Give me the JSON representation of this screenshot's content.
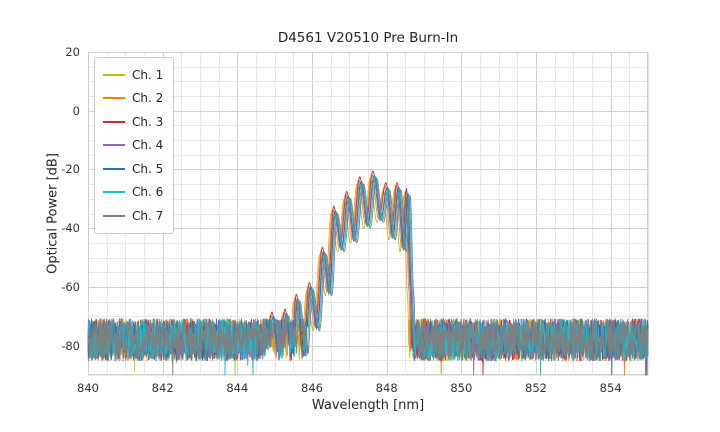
{
  "figure": {
    "title": "D4561 V20510 Pre Burn-In",
    "xlabel": "Wavelength [nm]",
    "ylabel": "Optical Power [dB]"
  },
  "chart_data": {
    "type": "line",
    "title": "D4561 V20510 Pre Burn-In",
    "xlabel": "Wavelength [nm]",
    "ylabel": "Optical Power [dB]",
    "xlim": [
      840,
      855
    ],
    "ylim": [
      -90,
      20
    ],
    "xticks": [
      840,
      842,
      844,
      846,
      848,
      850,
      852,
      854
    ],
    "yticks": [
      20,
      0,
      -20,
      -40,
      -60,
      -80
    ],
    "grid": true,
    "minor_grid_step_x_nm": 0.5,
    "minor_grid_step_y_db": 5,
    "legend_position": "upper left",
    "background_color": "#ffffff",
    "major_grid_color": "#cfcfcf",
    "minor_grid_color": "#e7e7e7",
    "noise_floor": {
      "mean_db": -78,
      "spread_db": 9,
      "spike_chance": 0.004,
      "spike_extra_db": 10
    },
    "signal_envelope": [
      [
        840.0,
        -110
      ],
      [
        844.55,
        -110
      ],
      [
        844.8,
        -80
      ],
      [
        844.95,
        -70
      ],
      [
        845.1,
        -91
      ],
      [
        845.3,
        -69
      ],
      [
        845.45,
        -92
      ],
      [
        845.6,
        -64
      ],
      [
        845.78,
        -85
      ],
      [
        845.95,
        -60
      ],
      [
        846.12,
        -74
      ],
      [
        846.3,
        -48
      ],
      [
        846.45,
        -62
      ],
      [
        846.6,
        -34
      ],
      [
        846.78,
        -47
      ],
      [
        846.95,
        -29
      ],
      [
        847.12,
        -44
      ],
      [
        847.3,
        -24
      ],
      [
        847.48,
        -39
      ],
      [
        847.65,
        -22
      ],
      [
        847.83,
        -37
      ],
      [
        848.0,
        -26
      ],
      [
        848.15,
        -43
      ],
      [
        848.3,
        -26
      ],
      [
        848.45,
        -47
      ],
      [
        848.55,
        -28
      ],
      [
        848.65,
        -62
      ],
      [
        848.72,
        -110
      ],
      [
        855.0,
        -110
      ]
    ],
    "series": [
      {
        "name": "Ch. 1",
        "color": "#bcbd22",
        "wavelength_offset_nm": -0.09,
        "power_offset_db": -1.0
      },
      {
        "name": "Ch. 2",
        "color": "#ff7f0e",
        "wavelength_offset_nm": -0.05,
        "power_offset_db": 0.5
      },
      {
        "name": "Ch. 3",
        "color": "#d62728",
        "wavelength_offset_nm": -0.02,
        "power_offset_db": 1.5
      },
      {
        "name": "Ch. 4",
        "color": "#9467bd",
        "wavelength_offset_nm": 0.0,
        "power_offset_db": -0.5
      },
      {
        "name": "Ch. 5",
        "color": "#1f77b4",
        "wavelength_offset_nm": 0.02,
        "power_offset_db": 0.0
      },
      {
        "name": "Ch. 6",
        "color": "#17becf",
        "wavelength_offset_nm": 0.05,
        "power_offset_db": -0.5
      },
      {
        "name": "Ch. 7",
        "color": "#7f7f7f",
        "wavelength_offset_nm": 0.08,
        "power_offset_db": -1.0
      }
    ],
    "seed": 42
  }
}
